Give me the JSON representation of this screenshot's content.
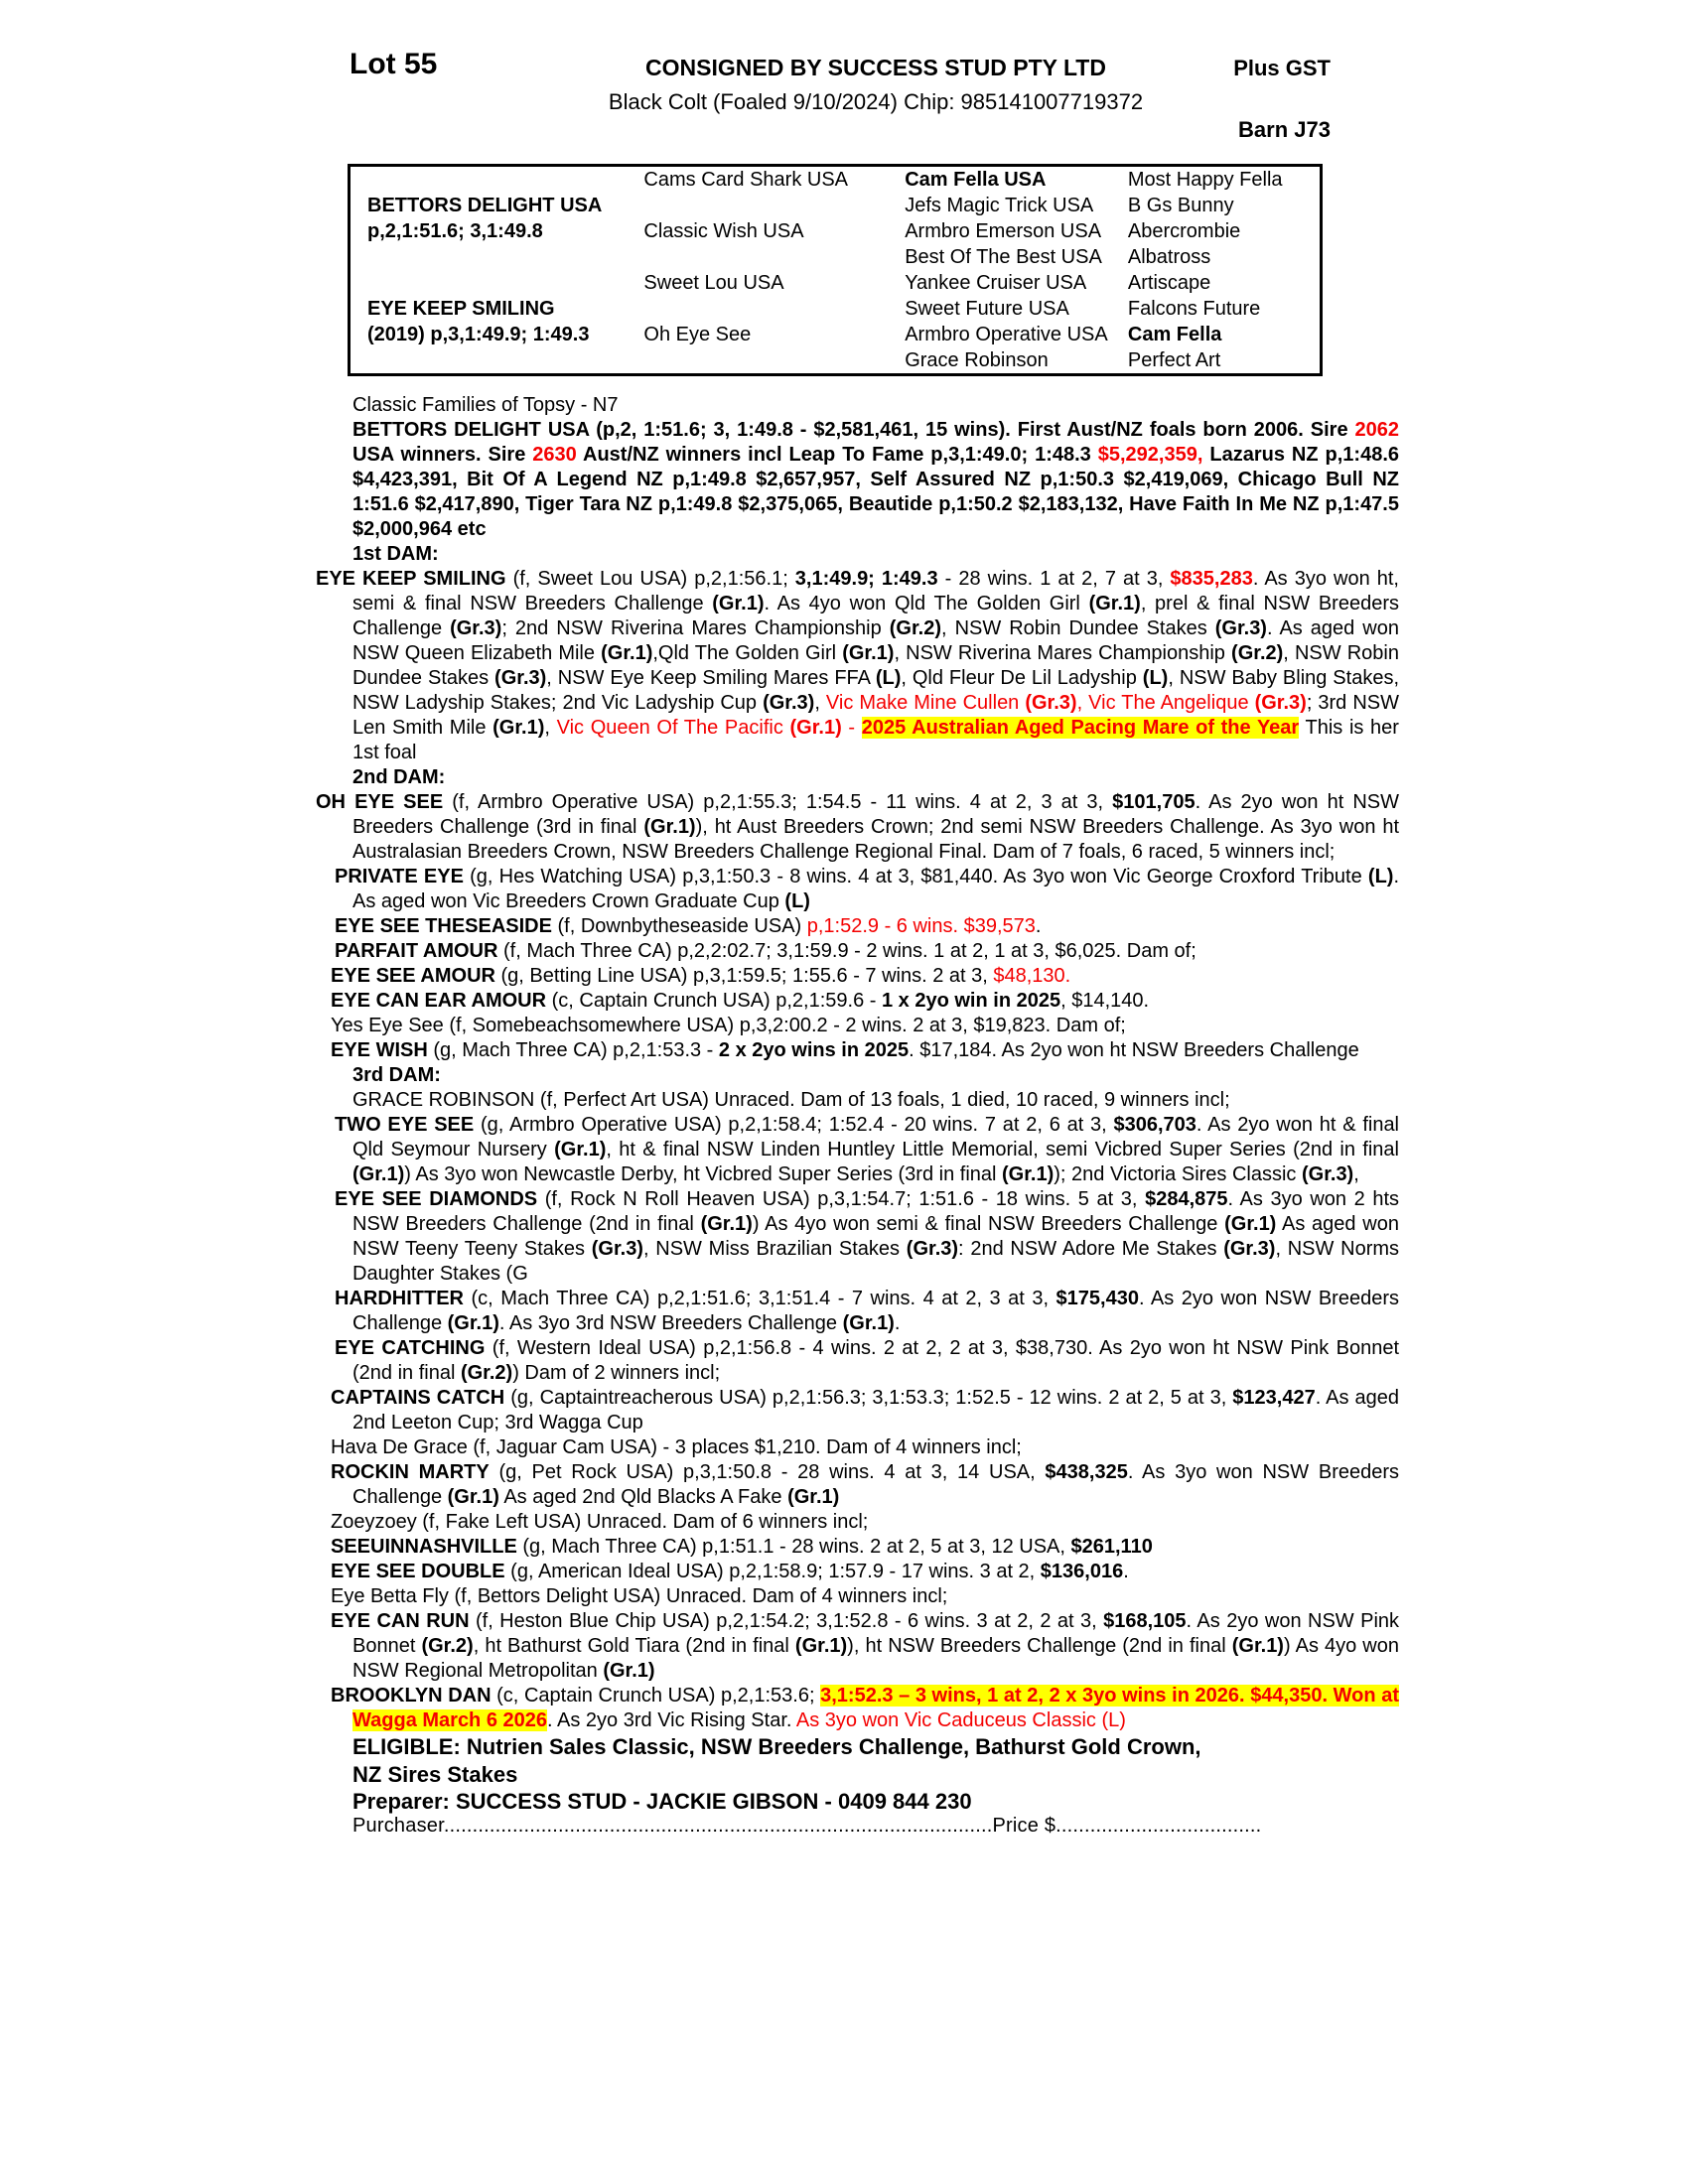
{
  "colors": {
    "red": "#f40000",
    "highlight": "#ffff00"
  },
  "header": {
    "lot": "Lot 55",
    "consigned": "CONSIGNED BY SUCCESS STUD PTY LTD",
    "plus_gst": "Plus GST",
    "description": "Black Colt (Foaled 9/10/2024) Chip: 985141007719372",
    "barn": "Barn J73"
  },
  "pedigree": {
    "rows": [
      [
        {
          "t": ""
        },
        {
          "t": "Cams Card Shark USA"
        },
        {
          "t": "Cam Fella USA",
          "b": 1
        },
        {
          "t": "Most Happy Fella"
        }
      ],
      [
        {
          "t": "BETTORS DELIGHT USA",
          "b": 1
        },
        {
          "t": ""
        },
        {
          "t": "Jefs Magic Trick USA"
        },
        {
          "t": "B Gs Bunny"
        }
      ],
      [
        {
          "t": "p,2,1:51.6; 3,1:49.8",
          "b": 1
        },
        {
          "t": "Classic Wish USA"
        },
        {
          "t": "Armbro Emerson USA"
        },
        {
          "t": "Abercrombie"
        }
      ],
      [
        {
          "t": ""
        },
        {
          "t": ""
        },
        {
          "t": "Best Of The Best USA"
        },
        {
          "t": "Albatross"
        }
      ],
      [
        {
          "t": ""
        },
        {
          "t": "Sweet Lou USA"
        },
        {
          "t": "Yankee Cruiser USA"
        },
        {
          "t": "Artiscape"
        }
      ],
      [
        {
          "t": "EYE KEEP SMILING",
          "b": 1
        },
        {
          "t": ""
        },
        {
          "t": "Sweet Future USA"
        },
        {
          "t": "Falcons Future"
        }
      ],
      [
        {
          "t": "(2019) p,3,1:49.9; 1:49.3",
          "b": 1
        },
        {
          "t": "Oh Eye See"
        },
        {
          "t": "Armbro Operative USA"
        },
        {
          "t": "Cam Fella",
          "b": 1
        }
      ],
      [
        {
          "t": ""
        },
        {
          "t": ""
        },
        {
          "t": "Grace Robinson"
        },
        {
          "t": "Perfect Art"
        }
      ]
    ]
  },
  "paragraphs": [
    {
      "id": "family-line",
      "runs": [
        {
          "t": "Classic Families of Topsy - N7"
        }
      ]
    },
    {
      "id": "bettors-delight",
      "runs": [
        {
          "t": "BETTORS DELIGHT USA (p,2, 1:51.6; 3, 1:49.8 - $2,581,461, 15 wins). First Aust/NZ foals born 2006. Sire ",
          "b": 1
        },
        {
          "t": "2062",
          "b": 1,
          "r": 1
        },
        {
          "t": " USA winners. Sire ",
          "b": 1
        },
        {
          "t": "2630",
          "b": 1,
          "r": 1
        },
        {
          "t": " Aust/NZ winners incl Leap To Fame p,3,1:49.0; 1:48.3 ",
          "b": 1
        },
        {
          "t": "$5,292,359,",
          "b": 1,
          "r": 1
        },
        {
          "t": " Lazarus NZ p,1:48.6 $4,423,391, Bit Of A Legend NZ p,1:49.8 $2,657,957, Self Assured NZ p,1:50.3 $2,419,069, Chicago Bull NZ 1:51.6 $2,417,890,  Tiger Tara NZ p,1:49.8 $2,375,065, Beautide p,1:50.2 $2,183,132, Have Faith In Me NZ p,1:47.5 $2,000,964 etc",
          "b": 1
        }
      ]
    },
    {
      "id": "heading-1st-dam",
      "runs": [
        {
          "t": "1st DAM:",
          "b": 1
        }
      ]
    },
    {
      "id": "eye-keep-smiling",
      "runs": [
        {
          "t": "EYE KEEP SMILING",
          "b": 1
        },
        {
          "t": " (f, Sweet Lou USA) p,2,1:56.1; "
        },
        {
          "t": "3,1:49.9; 1:49.3",
          "b": 1
        },
        {
          "t": " - 28 wins. 1 at 2, 7 at 3, "
        },
        {
          "t": "$835,283",
          "b": 1,
          "r": 1
        },
        {
          "t": ". As 3yo won ht, semi & final NSW Breeders Challenge "
        },
        {
          "t": "(Gr.1)",
          "b": 1
        },
        {
          "t": ". As 4yo won Qld The Golden Girl "
        },
        {
          "t": "(Gr.1)",
          "b": 1
        },
        {
          "t": ", prel & final NSW Breeders Challenge "
        },
        {
          "t": "(Gr.3)",
          "b": 1
        },
        {
          "t": "; 2nd NSW Riverina Mares Championship "
        },
        {
          "t": "(Gr.2)",
          "b": 1
        },
        {
          "t": ", NSW Robin Dundee Stakes "
        },
        {
          "t": "(Gr.3)",
          "b": 1
        },
        {
          "t": ". As aged won NSW Queen Elizabeth Mile "
        },
        {
          "t": "(Gr.1)",
          "b": 1
        },
        {
          "t": ",Qld The Golden Girl "
        },
        {
          "t": "(Gr.1)",
          "b": 1
        },
        {
          "t": ", NSW Riverina Mares Championship "
        },
        {
          "t": "(Gr.2)",
          "b": 1
        },
        {
          "t": ", NSW Robin Dundee Stakes "
        },
        {
          "t": "(Gr.3)",
          "b": 1
        },
        {
          "t": ", NSW Eye Keep Smiling Mares FFA "
        },
        {
          "t": "(L)",
          "b": 1
        },
        {
          "t": ", Qld Fleur De Lil Ladyship "
        },
        {
          "t": "(L)",
          "b": 1
        },
        {
          "t": ", NSW Baby Bling Stakes, NSW Ladyship Stakes; 2nd Vic Ladyship Cup "
        },
        {
          "t": "(Gr.3)",
          "b": 1
        },
        {
          "t": ", "
        },
        {
          "t": "Vic Make Mine Cullen ",
          "r": 1
        },
        {
          "t": "(Gr.3)",
          "b": 1,
          "r": 1
        },
        {
          "t": ", Vic The Angelique ",
          "r": 1
        },
        {
          "t": "(Gr.3)",
          "b": 1,
          "r": 1
        },
        {
          "t": "; 3rd NSW Len Smith Mile "
        },
        {
          "t": "(Gr.1)",
          "b": 1
        },
        {
          "t": ", "
        },
        {
          "t": "Vic Queen Of The Pacific ",
          "r": 1
        },
        {
          "t": "(Gr.1)",
          "b": 1,
          "r": 1
        },
        {
          "t": " - ",
          "r": 1
        },
        {
          "t": "2025 Australian Aged Pacing Mare of the Year",
          "b": 1,
          "r": 1,
          "h": 1
        },
        {
          "t": " This is her 1st foal"
        }
      ]
    },
    {
      "id": "heading-2nd-dam",
      "runs": [
        {
          "t": "2nd DAM:",
          "b": 1
        }
      ]
    },
    {
      "id": "oh-eye-see",
      "runs": [
        {
          "t": "OH EYE SEE",
          "b": 1
        },
        {
          "t": " (f, Armbro Operative USA) p,2,1:55.3; 1:54.5 - 11 wins. 4 at 2, 3 at 3, "
        },
        {
          "t": "$101,705",
          "b": 1
        },
        {
          "t": ". As 2yo won ht NSW Breeders Challenge (3rd in final "
        },
        {
          "t": "(Gr.1)",
          "b": 1
        },
        {
          "t": "), ht Aust Breeders Crown; 2nd semi NSW Breeders Challenge. As 3yo won ht Australasian Breeders Crown, NSW Breeders Challenge Regional Final. Dam of 7 foals, 6 raced, 5 winners incl;"
        }
      ]
    },
    {
      "id": "private-eye",
      "runs": [
        {
          "t": "PRIVATE EYE",
          "b": 1
        },
        {
          "t": " (g, Hes Watching USA) p,3,1:50.3 - 8 wins. 4 at 3, $81,440. As 3yo won Vic George Croxford Tribute "
        },
        {
          "t": "(L)",
          "b": 1
        },
        {
          "t": ". As aged won Vic Breeders Crown Graduate Cup "
        },
        {
          "t": "(L)",
          "b": 1
        }
      ]
    },
    {
      "id": "eye-see-theseaside",
      "runs": [
        {
          "t": "EYE SEE THESEASIDE",
          "b": 1
        },
        {
          "t": " (f, Downbytheseaside USA) "
        },
        {
          "t": "p,1:52.9 - 6 wins. $39,573",
          "r": 1
        },
        {
          "t": "."
        }
      ]
    },
    {
      "id": "parfait-amour",
      "runs": [
        {
          "t": "PARFAIT AMOUR",
          "b": 1
        },
        {
          "t": " (f, Mach Three CA) p,2,2:02.7; 3,1:59.9 - 2 wins. 1 at 2, 1 at 3, $6,025. Dam of;"
        }
      ]
    },
    {
      "id": "eye-see-amour",
      "runs": [
        {
          "t": "EYE SEE AMOUR",
          "b": 1
        },
        {
          "t": " (g, Betting Line USA) p,3,1:59.5; 1:55.6 - 7 wins. 2 at 3, "
        },
        {
          "t": "$48,130.",
          "r": 1
        }
      ]
    },
    {
      "id": "eye-can-ear-amour",
      "runs": [
        {
          "t": "EYE CAN EAR AMOUR",
          "b": 1
        },
        {
          "t": " (c, Captain Crunch USA) p,2,1:59.6 - "
        },
        {
          "t": "1 x 2yo win in 2025",
          "b": 1
        },
        {
          "t": ", $14,140."
        }
      ]
    },
    {
      "id": "yes-eye-see",
      "runs": [
        {
          "t": "Yes Eye See (f, Somebeachsomewhere USA) p,3,2:00.2 - 2 wins. 2 at 3, $19,823. Dam of;"
        }
      ]
    },
    {
      "id": "eye-wish",
      "runs": [
        {
          "t": "EYE WISH",
          "b": 1
        },
        {
          "t": " (g, Mach Three CA) p,2,1:53.3 - "
        },
        {
          "t": "2 x 2yo wins in 2025",
          "b": 1
        },
        {
          "t": ". $17,184. As 2yo won ht NSW Breeders Challenge"
        }
      ]
    },
    {
      "id": "heading-3rd-dam",
      "runs": [
        {
          "t": "3rd DAM:",
          "b": 1
        }
      ]
    },
    {
      "id": "grace-robinson",
      "runs": [
        {
          "t": "GRACE ROBINSON (f, Perfect Art USA) Unraced. Dam of 13 foals, 1 died, 10 raced, 9 winners incl;"
        }
      ]
    },
    {
      "id": "two-eye-see",
      "runs": [
        {
          "t": "TWO EYE SEE",
          "b": 1
        },
        {
          "t": " (g, Armbro Operative USA) p,2,1:58.4; 1:52.4 - 20 wins. 7 at 2, 6 at 3, "
        },
        {
          "t": "$306,703",
          "b": 1
        },
        {
          "t": ". As 2yo won ht & final Qld Seymour Nursery "
        },
        {
          "t": "(Gr.1)",
          "b": 1
        },
        {
          "t": ", ht & final NSW Linden Huntley Little Memorial, semi Vicbred Super Series (2nd in final "
        },
        {
          "t": "(Gr.1)",
          "b": 1
        },
        {
          "t": ") As 3yo won Newcastle Derby, ht Vicbred Super Series (3rd in final "
        },
        {
          "t": "(Gr.1)",
          "b": 1
        },
        {
          "t": "); 2nd Victoria Sires Classic "
        },
        {
          "t": "(Gr.3)",
          "b": 1
        },
        {
          "t": ","
        }
      ]
    },
    {
      "id": "eye-see-diamonds",
      "runs": [
        {
          "t": "EYE SEE DIAMONDS",
          "b": 1
        },
        {
          "t": " (f, Rock N Roll Heaven USA) p,3,1:54.7; 1:51.6 - 18 wins. 5 at 3, "
        },
        {
          "t": "$284,875",
          "b": 1
        },
        {
          "t": ". As 3yo won 2 hts NSW Breeders Challenge (2nd in final "
        },
        {
          "t": "(Gr.1)",
          "b": 1
        },
        {
          "t": ") As 4yo won semi & final NSW Breeders Challenge "
        },
        {
          "t": "(Gr.1)",
          "b": 1
        },
        {
          "t": " As aged won NSW Teeny Teeny Stakes "
        },
        {
          "t": "(Gr.3)",
          "b": 1
        },
        {
          "t": ", NSW Miss Brazilian Stakes "
        },
        {
          "t": "(Gr.3)",
          "b": 1
        },
        {
          "t": ": 2nd NSW Adore Me Stakes "
        },
        {
          "t": "(Gr.3)",
          "b": 1
        },
        {
          "t": ", NSW Norms Daughter Stakes (G"
        }
      ]
    },
    {
      "id": "hardhitter",
      "runs": [
        {
          "t": "HARDHITTER",
          "b": 1
        },
        {
          "t": " (c, Mach Three CA) p,2,1:51.6; 3,1:51.4 - 7 wins. 4 at 2, 3 at 3, "
        },
        {
          "t": "$175,430",
          "b": 1
        },
        {
          "t": ". As 2yo won NSW Breeders Challenge "
        },
        {
          "t": "(Gr.1)",
          "b": 1
        },
        {
          "t": ". As 3yo 3rd NSW Breeders Challenge "
        },
        {
          "t": "(Gr.1)",
          "b": 1
        },
        {
          "t": "."
        }
      ]
    },
    {
      "id": "eye-catching",
      "runs": [
        {
          "t": "EYE CATCHING",
          "b": 1
        },
        {
          "t": " (f, Western Ideal USA) p,2,1:56.8 - 4 wins. 2 at 2, 2 at 3, $38,730. As 2yo won ht NSW Pink Bonnet (2nd in final "
        },
        {
          "t": "(Gr.2)",
          "b": 1
        },
        {
          "t": ") Dam of 2 winners incl;"
        }
      ]
    },
    {
      "id": "captains-catch",
      "runs": [
        {
          "t": "CAPTAINS CATCH",
          "b": 1
        },
        {
          "t": " (g, Captaintreacherous USA) p,2,1:56.3; 3,1:53.3; 1:52.5 - 12 wins. 2 at 2, 5 at 3, "
        },
        {
          "t": "$123,427",
          "b": 1
        },
        {
          "t": ". As aged 2nd Leeton Cup; 3rd Wagga Cup"
        }
      ]
    },
    {
      "id": "hava-de-grace",
      "runs": [
        {
          "t": "Hava De Grace (f, Jaguar Cam USA) - 3 places $1,210. Dam of 4 winners incl;"
        }
      ]
    },
    {
      "id": "rockin-marty",
      "runs": [
        {
          "t": "ROCKIN MARTY",
          "b": 1
        },
        {
          "t": " (g, Pet Rock USA) p,3,1:50.8 - 28 wins. 4 at 3, 14 USA, "
        },
        {
          "t": "$438,325",
          "b": 1
        },
        {
          "t": ". As 3yo won NSW Breeders Challenge "
        },
        {
          "t": "(Gr.1)",
          "b": 1
        },
        {
          "t": " As aged 2nd Qld Blacks A Fake "
        },
        {
          "t": "(Gr.1)",
          "b": 1
        }
      ]
    },
    {
      "id": "zoeyzoey",
      "runs": [
        {
          "t": "Zoeyzoey (f, Fake Left USA) Unraced. Dam of 6 winners incl;"
        }
      ]
    },
    {
      "id": "seeuinnashville",
      "runs": [
        {
          "t": "SEEUINNASHVILLE",
          "b": 1
        },
        {
          "t": " (g, Mach Three CA) p,1:51.1 - 28 wins. 2 at 2, 5 at 3, 12 USA, "
        },
        {
          "t": "$261,110",
          "b": 1
        }
      ]
    },
    {
      "id": "eye-see-double",
      "runs": [
        {
          "t": "EYE SEE DOUBLE",
          "b": 1
        },
        {
          "t": " (g, American Ideal USA) p,2,1:58.9; 1:57.9 - 17 wins. 3 at 2, "
        },
        {
          "t": "$136,016",
          "b": 1
        },
        {
          "t": "."
        }
      ]
    },
    {
      "id": "eye-betta-fly",
      "runs": [
        {
          "t": "Eye Betta Fly (f, Bettors Delight USA) Unraced. Dam of 4 winners incl;"
        }
      ]
    },
    {
      "id": "eye-can-run",
      "runs": [
        {
          "t": "EYE CAN RUN",
          "b": 1
        },
        {
          "t": " (f, Heston Blue Chip USA) p,2,1:54.2; 3,1:52.8 - 6 wins. 3 at 2, 2 at 3, "
        },
        {
          "t": "$168,105",
          "b": 1
        },
        {
          "t": ". As 2yo won NSW Pink Bonnet "
        },
        {
          "t": "(Gr.2)",
          "b": 1
        },
        {
          "t": ", ht Bathurst Gold Tiara (2nd in final "
        },
        {
          "t": "(Gr.1)",
          "b": 1
        },
        {
          "t": "), ht NSW Breeders Challenge (2nd in final "
        },
        {
          "t": "(Gr.1)",
          "b": 1
        },
        {
          "t": ") As 4yo won NSW Regional Metropolitan "
        },
        {
          "t": "(Gr.1)",
          "b": 1
        }
      ]
    },
    {
      "id": "brooklyn-dan",
      "runs": [
        {
          "t": "BROOKLYN DAN",
          "b": 1
        },
        {
          "t": " (c, Captain Crunch USA) p,2,1:53.6; "
        },
        {
          "t": "3,1:52.3 – 3 wins, 1 at 2, 2 x 3yo wins in 2026. $44,350. Won at Wagga March 6 2026",
          "b": 1,
          "r": 1,
          "h": 1
        },
        {
          "t": ". As 2yo 3rd Vic Rising Star. "
        },
        {
          "t": "As 3yo won Vic Caduceus Classic (L)",
          "r": 1
        }
      ]
    }
  ],
  "footer": {
    "eligible_line1": "ELIGIBLE: Nutrien Sales Classic, NSW Breeders Challenge, Bathurst Gold Crown,",
    "eligible_line2": "NZ Sires Stakes",
    "preparer": "Preparer: SUCCESS STUD - JACKIE GIBSON - 0409 844 230",
    "purchaser_label": "Purchaser",
    "purchaser_dots": "................................................................................................",
    "price_label": "Price $",
    "price_dots": "...................................."
  }
}
